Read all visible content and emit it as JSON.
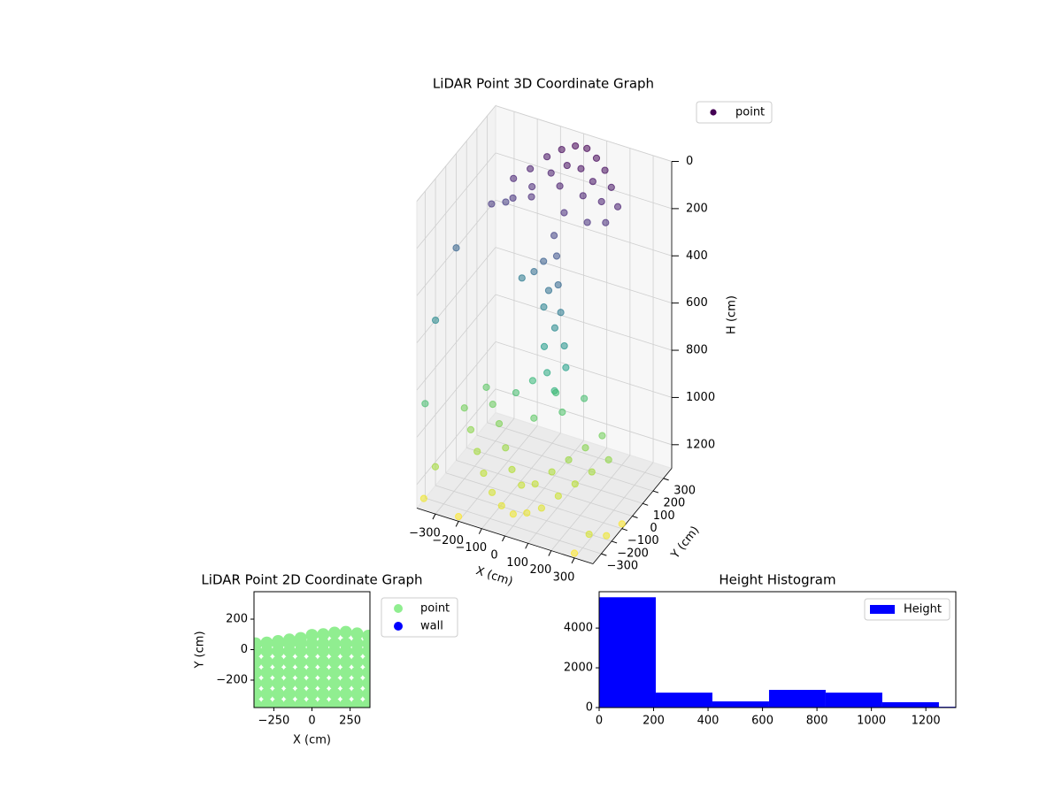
{
  "chart_data": [
    {
      "type": "scatter3d",
      "title": "LiDAR Point 3D Coordinate Graph",
      "xlabel": "X (cm)",
      "ylabel": "Y (cm)",
      "zlabel": "H (cm)",
      "xlim": [
        -380,
        380
      ],
      "ylim": [
        -380,
        380
      ],
      "zlim": [
        1300,
        0
      ],
      "xticks": [
        {
          "value": -300,
          "label": "−300"
        },
        {
          "value": -200,
          "label": "−200"
        },
        {
          "value": -100,
          "label": "−100"
        },
        0,
        100,
        200,
        300
      ],
      "yticks": [
        {
          "value": -300,
          "label": "−300"
        },
        {
          "value": -200,
          "label": "−200"
        },
        {
          "value": -100,
          "label": "−100"
        },
        0,
        100,
        200,
        300
      ],
      "zticks": [
        0,
        200,
        400,
        600,
        800,
        1000,
        1200
      ],
      "grid": true,
      "legend": "upper right",
      "series": [
        {
          "name": "point",
          "colormap": "viridis",
          "x": [
            -200,
            -150,
            -100,
            -50,
            0,
            50,
            100,
            150,
            200,
            250,
            -180,
            -120,
            -60,
            0,
            60,
            120,
            180,
            220,
            -250,
            -220,
            -100,
            0,
            100,
            150,
            50,
            20,
            40,
            -30,
            60,
            10,
            80,
            -20,
            50,
            100,
            0,
            120,
            -80,
            -150,
            30,
            80,
            -300,
            -250,
            -200,
            -150,
            -100,
            -50,
            0,
            50,
            100,
            150,
            200,
            250,
            300,
            -250,
            -200,
            -150,
            -100,
            -50,
            0,
            50,
            100,
            150,
            200,
            250,
            -100,
            0,
            100,
            -50,
            50,
            150,
            -380,
            -380,
            -350,
            -300,
            -380,
            350,
            380,
            380,
            300,
            -200
          ],
          "y": [
            150,
            200,
            250,
            280,
            300,
            300,
            280,
            250,
            200,
            150,
            100,
            150,
            200,
            220,
            220,
            200,
            150,
            100,
            50,
            120,
            100,
            150,
            150,
            80,
            80,
            50,
            30,
            60,
            0,
            20,
            -20,
            40,
            -10,
            -30,
            0,
            -60,
            80,
            120,
            -40,
            -80,
            -100,
            -150,
            -200,
            -250,
            -280,
            -300,
            -300,
            -280,
            -250,
            -200,
            -150,
            -100,
            -50,
            0,
            -50,
            -100,
            -150,
            -200,
            -220,
            -200,
            -150,
            -100,
            -50,
            0,
            -50,
            -100,
            -50,
            0,
            0,
            50,
            -300,
            -200,
            -380,
            -380,
            0,
            -350,
            -250,
            -100,
            -380,
            -380
          ],
          "z": [
            130,
            100,
            60,
            30,
            10,
            5,
            20,
            40,
            70,
            110,
            180,
            140,
            90,
            50,
            45,
            70,
            110,
            160,
            200,
            220,
            150,
            100,
            110,
            170,
            160,
            250,
            320,
            380,
            420,
            470,
            520,
            560,
            600,
            650,
            700,
            720,
            450,
            520,
            780,
            820,
            1000,
            1050,
            1100,
            1150,
            1200,
            1230,
            1250,
            1240,
            1220,
            1180,
            1140,
            1100,
            1060,
            950,
            980,
            1020,
            1080,
            1130,
            1170,
            1160,
            1120,
            1080,
            1040,
            1000,
            900,
            950,
            920,
            860,
            880,
            900,
            900,
            600,
            1250,
            1100,
            400,
            1200,
            1250,
            1280,
            1280,
            1280
          ]
        }
      ]
    },
    {
      "type": "scatter",
      "title": "LiDAR Point 2D Coordinate Graph",
      "xlabel": "X (cm)",
      "ylabel": "Y (cm)",
      "xlim": [
        -380,
        380
      ],
      "ylim": [
        -380,
        380
      ],
      "xticks": [
        {
          "value": -250,
          "label": "−250"
        },
        0,
        250
      ],
      "yticks": [
        {
          "value": -200,
          "label": "−200"
        },
        0,
        200
      ],
      "legend": "outside right",
      "series": [
        {
          "name": "point",
          "color": "lightgreen",
          "x": [
            -370,
            -296,
            -222,
            -148,
            -74,
            0,
            74,
            148,
            222,
            296,
            370,
            -370,
            -296,
            -222,
            -148,
            -74,
            0,
            74,
            148,
            222,
            296,
            370,
            -370,
            -296,
            -222,
            -148,
            -74,
            0,
            74,
            148,
            222,
            296,
            370,
            -370,
            -296,
            -222,
            -148,
            -74,
            0,
            74,
            148,
            222,
            296,
            370,
            -370,
            -296,
            -222,
            -148,
            -74,
            0,
            74,
            148,
            222,
            296,
            370,
            -370,
            -296,
            -222,
            -148,
            -74,
            0,
            74,
            148,
            222,
            296,
            370,
            -370,
            -296,
            -222,
            -148,
            -74,
            0,
            74,
            148,
            222,
            296,
            370,
            -370,
            -296,
            -222,
            -148,
            -74,
            0,
            74,
            148,
            222,
            296,
            370
          ],
          "y": [
            -360,
            -360,
            -360,
            -360,
            -360,
            -360,
            -360,
            -360,
            -360,
            -360,
            -360,
            -290,
            -290,
            -290,
            -290,
            -290,
            -290,
            -290,
            -290,
            -290,
            -290,
            -290,
            -220,
            -220,
            -220,
            -220,
            -220,
            -220,
            -220,
            -220,
            -220,
            -220,
            -220,
            -150,
            -150,
            -150,
            -150,
            -150,
            -150,
            -150,
            -150,
            -150,
            -150,
            -150,
            -80,
            -80,
            -80,
            -80,
            -80,
            -80,
            -80,
            -80,
            -80,
            -80,
            -80,
            -10,
            -10,
            -10,
            -10,
            -10,
            -10,
            -10,
            -10,
            -10,
            -10,
            -10,
            40,
            40,
            40,
            40,
            40,
            40,
            40,
            40,
            40,
            40,
            40,
            35,
            45,
            55,
            65,
            75,
            95,
            100,
            110,
            115,
            105,
            90
          ]
        },
        {
          "name": "wall",
          "color": "blue",
          "x": [],
          "y": []
        }
      ]
    },
    {
      "type": "histogram",
      "title": "Height Histogram",
      "bins": [
        0,
        208,
        416,
        624,
        832,
        1040,
        1248,
        1310
      ],
      "xlim": [
        0,
        1310
      ],
      "ylim": [
        0,
        5830
      ],
      "xticks": [
        0,
        200,
        400,
        600,
        800,
        1000,
        1200
      ],
      "yticks": [
        0,
        2000,
        4000
      ],
      "legend": "upper right",
      "series": [
        {
          "name": "Height",
          "color": "blue",
          "values": [
            5550,
            750,
            310,
            890,
            750,
            270,
            40
          ]
        }
      ]
    }
  ]
}
